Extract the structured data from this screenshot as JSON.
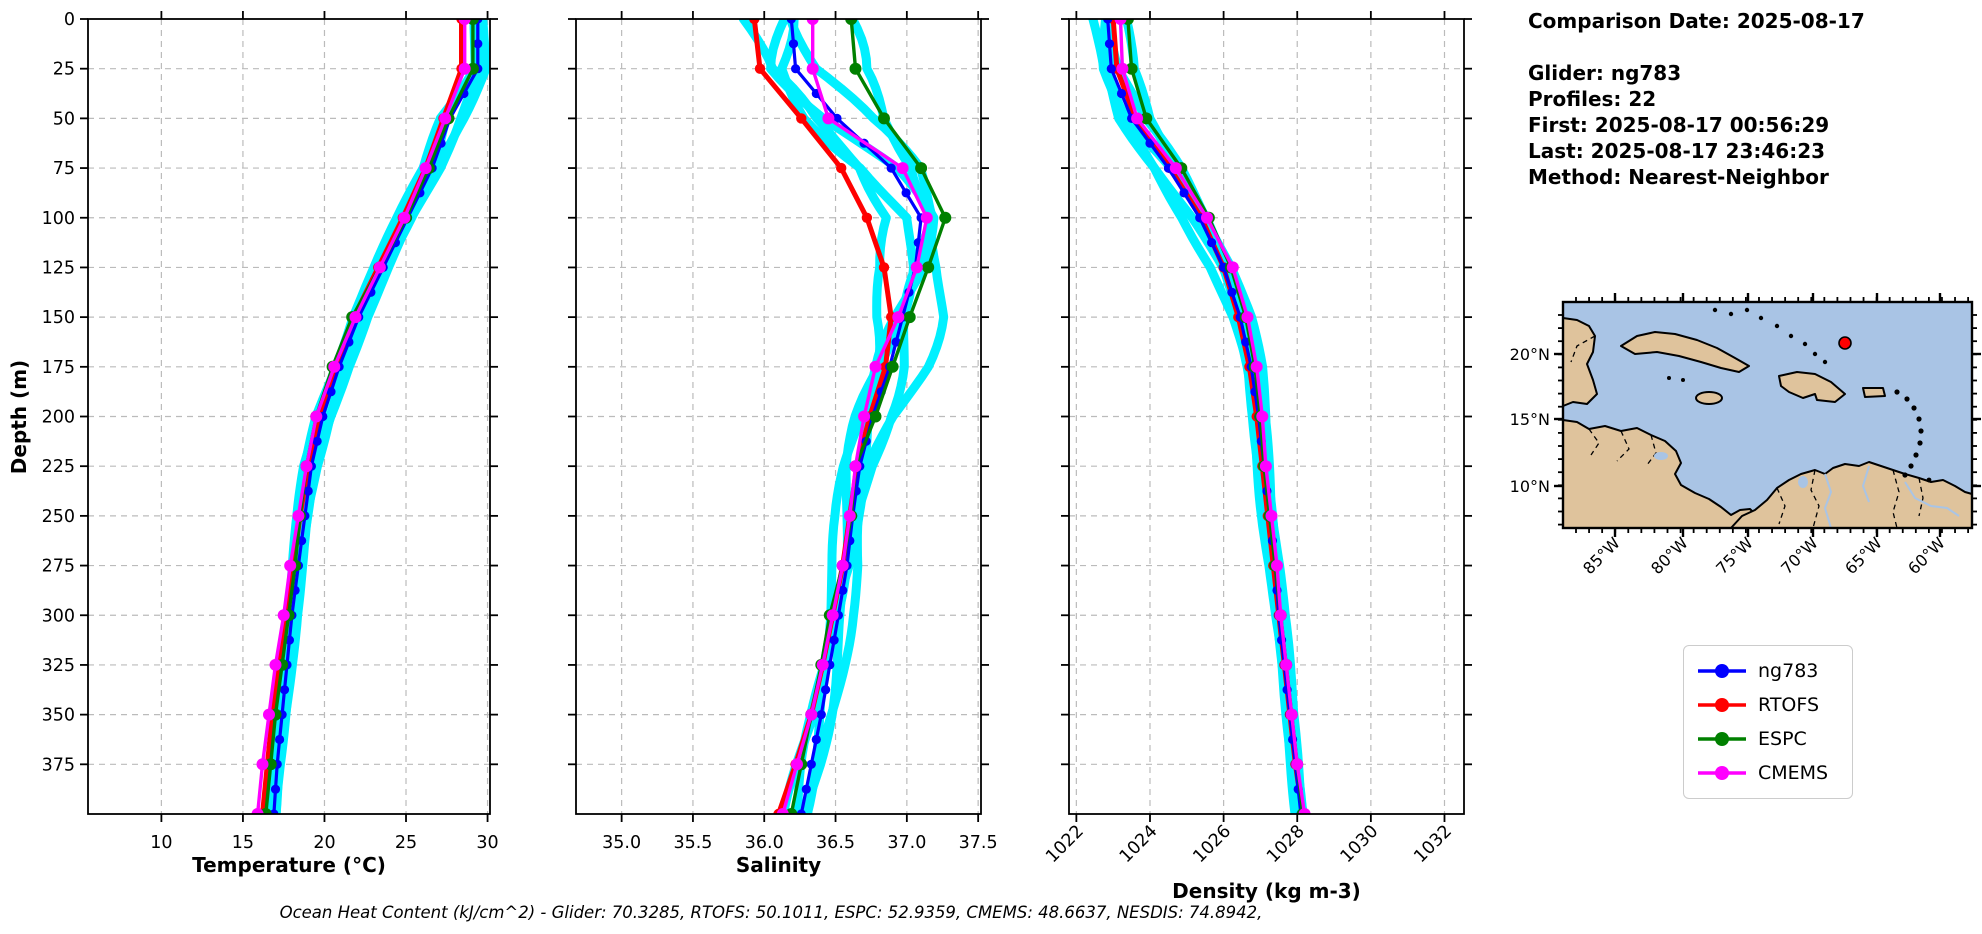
{
  "info_panel": {
    "comparison_date": "Comparison Date: 2025-08-17",
    "glider": "Glider: ng783",
    "profiles": "Profiles: 22",
    "first": "First: 2025-08-17 00:56:29",
    "last": "Last: 2025-08-17 23:46:23",
    "method": "Method: Nearest-Neighbor"
  },
  "footer": {
    "text": "Ocean Heat Content (kJ/cm^2) - Glider: 70.3285,  RTOFS: 50.1011,  ESPC: 52.9359,  CMEMS: 48.6637,  NESDIS: 74.8942,"
  },
  "legend": {
    "items": [
      {
        "label": "ng783",
        "color": "#0000FF"
      },
      {
        "label": "RTOFS",
        "color": "#FF0000"
      },
      {
        "label": "ESPC",
        "color": "#008000"
      },
      {
        "label": "CMEMS",
        "color": "#FF00FF"
      }
    ]
  },
  "colors": {
    "ng783": "#0000FF",
    "RTOFS": "#FF0000",
    "ESPC": "#008000",
    "CMEMS": "#FF00FF",
    "glider_profiles": "#00F0FF",
    "grid": "#bbbbbb",
    "map_land": "#DFC39C",
    "map_ocean": "#A9C4E5",
    "map_marker": "#FF0000"
  },
  "map": {
    "lon_labels": [
      "85°W",
      "80°W",
      "75°W",
      "70°W",
      "65°W",
      "60°W"
    ],
    "lat_labels": [
      "20°N",
      "15°N",
      "10°N"
    ],
    "marker_name": "glider-location"
  },
  "depths_m": [
    0,
    25,
    50,
    75,
    100,
    125,
    150,
    175,
    200,
    225,
    250,
    275,
    300,
    325,
    350,
    375,
    400
  ],
  "depth_ticks": [
    0,
    25,
    50,
    75,
    100,
    125,
    150,
    175,
    200,
    225,
    250,
    275,
    300,
    325,
    350,
    375
  ],
  "ylabel": "Depth (m)",
  "chart_data": [
    {
      "id": "temperature",
      "type": "line",
      "xlabel": "Temperature (°C)",
      "ylabel": "Depth (m)",
      "xlim": [
        5.5,
        30.15
      ],
      "ylim": [
        400,
        0
      ],
      "grid": true,
      "xticks": [
        10,
        15,
        20,
        25,
        30
      ],
      "xtick_labels": [
        "10",
        "15",
        "20",
        "25",
        "30"
      ],
      "rotate_xtick_labels": false,
      "series": [
        {
          "name": "ng783",
          "color": "#0000FF",
          "values": [
            29.4,
            29.4,
            27.7,
            26.6,
            25.1,
            23.6,
            22.1,
            20.9,
            19.9,
            19.2,
            18.8,
            18.4,
            18.0,
            17.7,
            17.4,
            17.1,
            16.9
          ]
        },
        {
          "name": "RTOFS",
          "color": "#FF0000",
          "values": [
            28.4,
            28.4,
            27.3,
            26.2,
            24.8,
            23.3,
            21.8,
            20.7,
            19.7,
            19.0,
            18.5,
            18.1,
            17.6,
            17.2,
            16.8,
            16.5,
            16.2
          ]
        },
        {
          "name": "ESPC",
          "color": "#008000",
          "values": [
            29.1,
            29.1,
            27.6,
            26.4,
            25.0,
            23.4,
            21.7,
            20.5,
            19.5,
            18.9,
            18.5,
            18.2,
            17.8,
            17.4,
            17.0,
            16.7,
            16.4
          ]
        },
        {
          "name": "CMEMS",
          "color": "#FF00FF",
          "values": [
            28.6,
            28.6,
            27.4,
            26.2,
            24.9,
            23.4,
            21.9,
            20.6,
            19.5,
            18.9,
            18.4,
            17.9,
            17.5,
            17.0,
            16.6,
            16.2,
            15.9
          ]
        }
      ],
      "glider_spread_halfwidth": [
        0.3,
        0.4,
        0.85,
        0.65,
        0.55,
        0.5,
        0.5,
        0.5,
        0.55,
        0.5,
        0.4,
        0.35,
        0.3,
        0.28,
        0.28,
        0.3,
        0.32
      ]
    },
    {
      "id": "salinity",
      "type": "line",
      "xlabel": "Salinity",
      "ylabel": "Depth (m)",
      "xlim": [
        34.68,
        37.52
      ],
      "ylim": [
        400,
        0
      ],
      "grid": true,
      "xticks": [
        35.0,
        35.5,
        36.0,
        36.5,
        37.0,
        37.5
      ],
      "xtick_labels": [
        "35.0",
        "35.5",
        "36.0",
        "36.5",
        "37.0",
        "37.5"
      ],
      "rotate_xtick_labels": false,
      "series": [
        {
          "name": "ng783",
          "color": "#0000FF",
          "values": [
            36.19,
            36.22,
            36.51,
            36.89,
            37.1,
            37.06,
            36.97,
            36.88,
            36.76,
            36.67,
            36.62,
            36.58,
            36.52,
            36.46,
            36.4,
            36.33,
            36.26
          ]
        },
        {
          "name": "RTOFS",
          "color": "#FF0000",
          "values": [
            35.93,
            35.97,
            36.26,
            36.54,
            36.72,
            36.84,
            36.89,
            36.85,
            36.74,
            36.65,
            36.6,
            36.55,
            36.48,
            36.41,
            36.33,
            36.22,
            36.1
          ]
        },
        {
          "name": "ESPC",
          "color": "#008000",
          "values": [
            36.61,
            36.64,
            36.84,
            37.1,
            37.27,
            37.15,
            37.02,
            36.9,
            36.78,
            36.64,
            36.61,
            36.55,
            36.46,
            36.4,
            36.33,
            36.26,
            36.19
          ]
        },
        {
          "name": "CMEMS",
          "color": "#FF00FF",
          "values": [
            36.34,
            36.34,
            36.45,
            36.97,
            37.14,
            37.07,
            36.94,
            36.78,
            36.7,
            36.64,
            36.6,
            36.55,
            36.48,
            36.41,
            36.33,
            36.23,
            36.13
          ]
        }
      ],
      "glider_spread_halfwidth": [
        0.42,
        0.4,
        0.33,
        0.26,
        0.2,
        0.22,
        0.26,
        0.22,
        0.16,
        0.12,
        0.1,
        0.1,
        0.09,
        0.09,
        0.09,
        0.1,
        0.1
      ]
    },
    {
      "id": "density",
      "type": "line",
      "xlabel": "Density (kg m-3)",
      "ylabel": "Depth (m)",
      "xlim": [
        1021.8,
        1032.53
      ],
      "ylim": [
        400,
        0
      ],
      "grid": true,
      "xticks": [
        1022,
        1024,
        1026,
        1028,
        1030,
        1032
      ],
      "xtick_labels": [
        "1022",
        "1024",
        "1026",
        "1028",
        "1030",
        "1032"
      ],
      "rotate_xtick_labels": true,
      "series": [
        {
          "name": "ng783",
          "color": "#0000FF",
          "values": [
            1022.85,
            1022.95,
            1023.5,
            1024.5,
            1025.35,
            1026.0,
            1026.45,
            1026.75,
            1026.95,
            1027.1,
            1027.25,
            1027.4,
            1027.5,
            1027.65,
            1027.8,
            1027.95,
            1028.1
          ]
        },
        {
          "name": "RTOFS",
          "color": "#FF0000",
          "values": [
            1023.0,
            1023.1,
            1023.6,
            1024.55,
            1025.4,
            1026.0,
            1026.4,
            1026.7,
            1026.9,
            1027.05,
            1027.2,
            1027.35,
            1027.5,
            1027.65,
            1027.8,
            1027.95,
            1028.15
          ]
        },
        {
          "name": "ESPC",
          "color": "#008000",
          "values": [
            1023.4,
            1023.5,
            1023.9,
            1024.85,
            1025.6,
            1026.2,
            1026.6,
            1026.85,
            1027.0,
            1027.1,
            1027.25,
            1027.4,
            1027.55,
            1027.7,
            1027.85,
            1028.0,
            1028.15
          ]
        },
        {
          "name": "CMEMS",
          "color": "#FF00FF",
          "values": [
            1023.2,
            1023.25,
            1023.65,
            1024.7,
            1025.55,
            1026.25,
            1026.65,
            1026.9,
            1027.05,
            1027.15,
            1027.3,
            1027.45,
            1027.55,
            1027.7,
            1027.85,
            1028.0,
            1028.2
          ]
        }
      ],
      "glider_spread_halfwidth": [
        0.5,
        0.5,
        0.5,
        0.45,
        0.4,
        0.32,
        0.28,
        0.25,
        0.22,
        0.2,
        0.18,
        0.16,
        0.15,
        0.14,
        0.13,
        0.13,
        0.13
      ]
    }
  ]
}
